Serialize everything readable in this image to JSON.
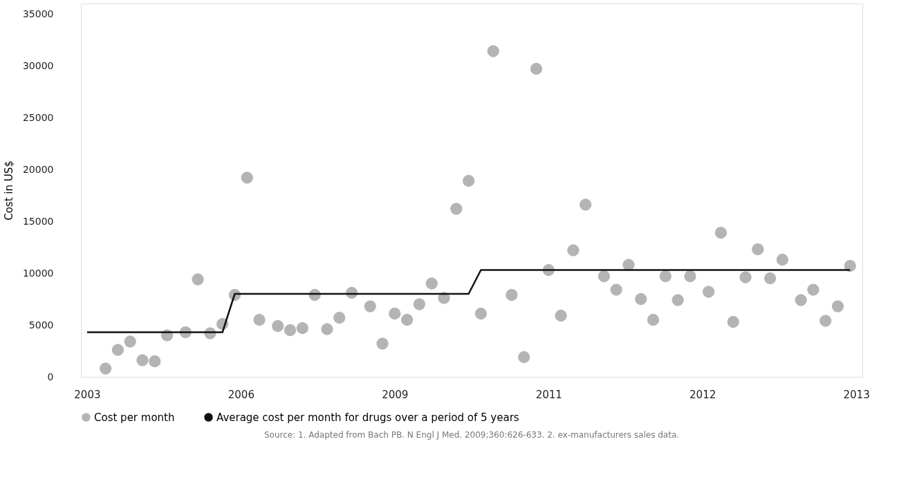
{
  "chart_data": {
    "type": "scatter",
    "ylabel": "Cost in US$",
    "categories": [
      "2003",
      null,
      null,
      null,
      null,
      null,
      null,
      null,
      null,
      null,
      null,
      null,
      null,
      null,
      null,
      null,
      null,
      null,
      null,
      null,
      null,
      null,
      null,
      null,
      null,
      "2006",
      null,
      null,
      null,
      null,
      null,
      null,
      null,
      null,
      null,
      null,
      null,
      null,
      null,
      null,
      null,
      null,
      null,
      null,
      null,
      null,
      null,
      null,
      null,
      null,
      "2009",
      null,
      null,
      null,
      null,
      null,
      null,
      null,
      null,
      null,
      null,
      null,
      null,
      null,
      null,
      null,
      null,
      null,
      null,
      null,
      null,
      null,
      null,
      null,
      null,
      "2011",
      null,
      null,
      null,
      null,
      null,
      null,
      null,
      null,
      null,
      null,
      null,
      null,
      null,
      null,
      null,
      null,
      null,
      null,
      null,
      null,
      null,
      null,
      null,
      null,
      "2012",
      null,
      null,
      null,
      null,
      null,
      null,
      null,
      null,
      null,
      null,
      null,
      null,
      null,
      null,
      null,
      null,
      null,
      null,
      null,
      null,
      null,
      null,
      null,
      null,
      "2013"
    ],
    "ylim": [
      0,
      36000
    ],
    "yticks": [
      0,
      5000,
      10000,
      15000,
      20000,
      25000,
      30000,
      35000
    ],
    "grid": false,
    "legend": "bottom",
    "series": [
      {
        "name": "Cost per month",
        "color": "#b4b4b4",
        "marker": "circle",
        "values": [
          null,
          null,
          null,
          800,
          null,
          2600,
          null,
          3400,
          null,
          1600,
          null,
          1500,
          null,
          4000,
          null,
          null,
          4300,
          null,
          9400,
          null,
          4200,
          null,
          5100,
          null,
          7900,
          null,
          19200,
          null,
          5500,
          null,
          null,
          4900,
          null,
          4500,
          null,
          4700,
          null,
          7900,
          null,
          4600,
          null,
          5700,
          null,
          8100,
          null,
          null,
          6800,
          null,
          3200,
          null,
          6100,
          null,
          5500,
          null,
          7000,
          null,
          9000,
          null,
          7600,
          null,
          16200,
          null,
          18900,
          null,
          6100,
          null,
          31400,
          null,
          null,
          7900,
          null,
          1900,
          null,
          29700,
          null,
          10300,
          null,
          5900,
          null,
          12200,
          null,
          16600,
          null,
          null,
          9700,
          null,
          8400,
          null,
          10800,
          null,
          7500,
          null,
          5500,
          null,
          9700,
          null,
          7400,
          null,
          9700,
          null,
          null,
          8200,
          null,
          13900,
          null,
          5300,
          null,
          9600,
          null,
          12300,
          null,
          9500,
          null,
          11300,
          null,
          null,
          7400,
          null,
          8400,
          null,
          5400,
          null,
          6800,
          null,
          10700,
          null
        ]
      },
      {
        "name": "Average cost per month for drugs over a period of 5 years",
        "type": "line",
        "line_style": "solid",
        "color": "#111111",
        "values": [
          4300,
          4300,
          4300,
          4300,
          4300,
          4300,
          4300,
          4300,
          4300,
          4300,
          4300,
          4300,
          4300,
          4300,
          4300,
          4300,
          4300,
          4300,
          4300,
          4300,
          4300,
          4300,
          4300,
          6150,
          8000,
          8000,
          8000,
          8000,
          8000,
          8000,
          8000,
          8000,
          8000,
          8000,
          8000,
          8000,
          8000,
          8000,
          8000,
          8000,
          8000,
          8000,
          8000,
          8000,
          8000,
          8000,
          8000,
          8000,
          8000,
          8000,
          8000,
          8000,
          8000,
          8000,
          8000,
          8000,
          8000,
          8000,
          8000,
          8000,
          8000,
          8000,
          8000,
          9150,
          10300,
          10300,
          10300,
          10300,
          10300,
          10300,
          10300,
          10300,
          10300,
          10300,
          10300,
          10300,
          10300,
          10300,
          10300,
          10300,
          10300,
          10300,
          10300,
          10300,
          10300,
          10300,
          10300,
          10300,
          10300,
          10300,
          10300,
          10300,
          10300,
          10300,
          10300,
          10300,
          10300,
          10300,
          10300,
          10300,
          10300,
          10300,
          10300,
          10300,
          10300,
          10300,
          10300,
          10300,
          10300,
          10300,
          10300,
          10300,
          10300,
          10300,
          10300,
          10300,
          10300,
          10300,
          10300,
          10300,
          10300,
          10300,
          10300,
          10300,
          10300,
          null
        ]
      }
    ],
    "annotations": [
      "Source: 1. Adapted from Bach PB. N Engl J Med. 2009;360:626-633. 2. ex-manufacturers sales data."
    ]
  }
}
